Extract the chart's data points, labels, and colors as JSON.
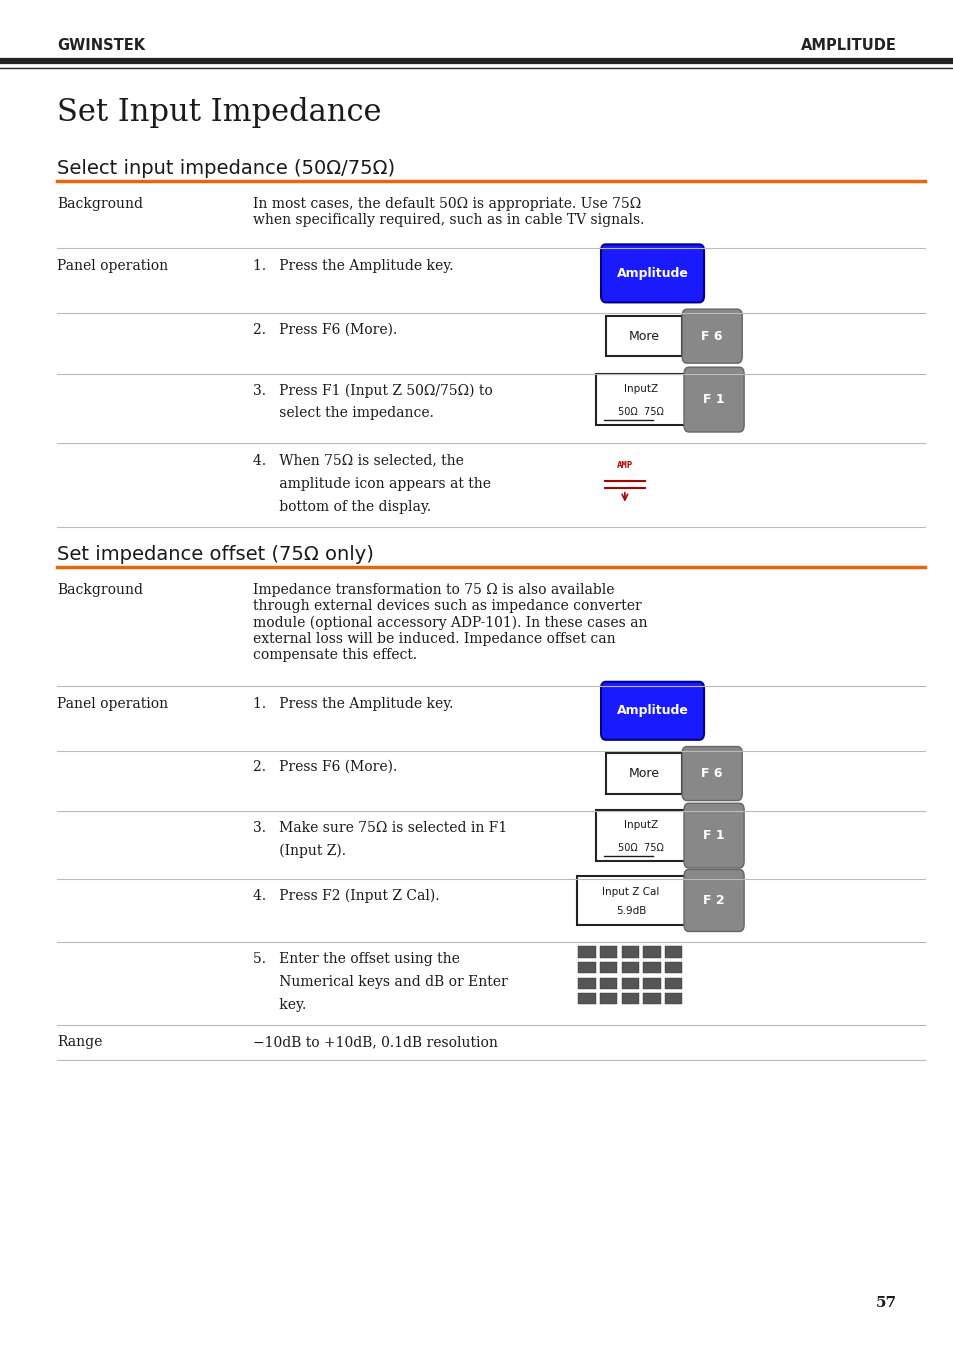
{
  "page_title": "Set Input Impedance",
  "header_left": "GWINSTEK",
  "header_right": "AMPLITUDE",
  "section1_title": "Select input impedance (50Ω/75Ω)",
  "section2_title": "Set impedance offset (75Ω only)",
  "bg_color": "#ffffff",
  "text_color": "#1a1a1a",
  "orange_color": "#e8650a",
  "blue_color": "#1a1aff",
  "page_number": "57",
  "row1_label": "Background",
  "row1_text": "In most cases, the default 50Ω is appropriate. Use 75Ω\nwhen specifically required, such as in cable TV signals.",
  "row2_label": "Panel operation",
  "row2_text1": "1.   Press the Amplitude key.",
  "row2_text2": "2.   Press F6 (More).",
  "row2_text3_a": "3.   Press F1 (Input Z 50Ω/75Ω) to",
  "row2_text3_b": "      select the impedance.",
  "row2_text4_a": "4.   When 75Ω is selected, the",
  "row2_text4_b": "      amplitude icon appears at the",
  "row2_text4_c": "      bottom of the display.",
  "sec2_row1_label": "Background",
  "sec2_row1_text": "Impedance transformation to 75 Ω is also available\nthrough external devices such as impedance converter\nmodule (optional accessory ADP-101). In these cases an\nexternal loss will be induced. Impedance offset can\ncompensate this effect.",
  "sec2_row2_label": "Panel operation",
  "sec2_row2_text1": "1.   Press the Amplitude key.",
  "sec2_row2_text2": "2.   Press F6 (More).",
  "sec2_row2_text3_a": "3.   Make sure 75Ω is selected in F1",
  "sec2_row2_text3_b": "      (Input Z).",
  "sec2_row2_text4": "4.   Press F2 (Input Z Cal).",
  "sec2_row2_text5_a": "5.   Enter the offset using the",
  "sec2_row2_text5_b": "      Numerical keys and dB or Enter",
  "sec2_row2_text5_c": "      key.",
  "sec2_row3_label": "Range",
  "sec2_row3_text": "−10dB to +10dB, 0.1dB resolution"
}
